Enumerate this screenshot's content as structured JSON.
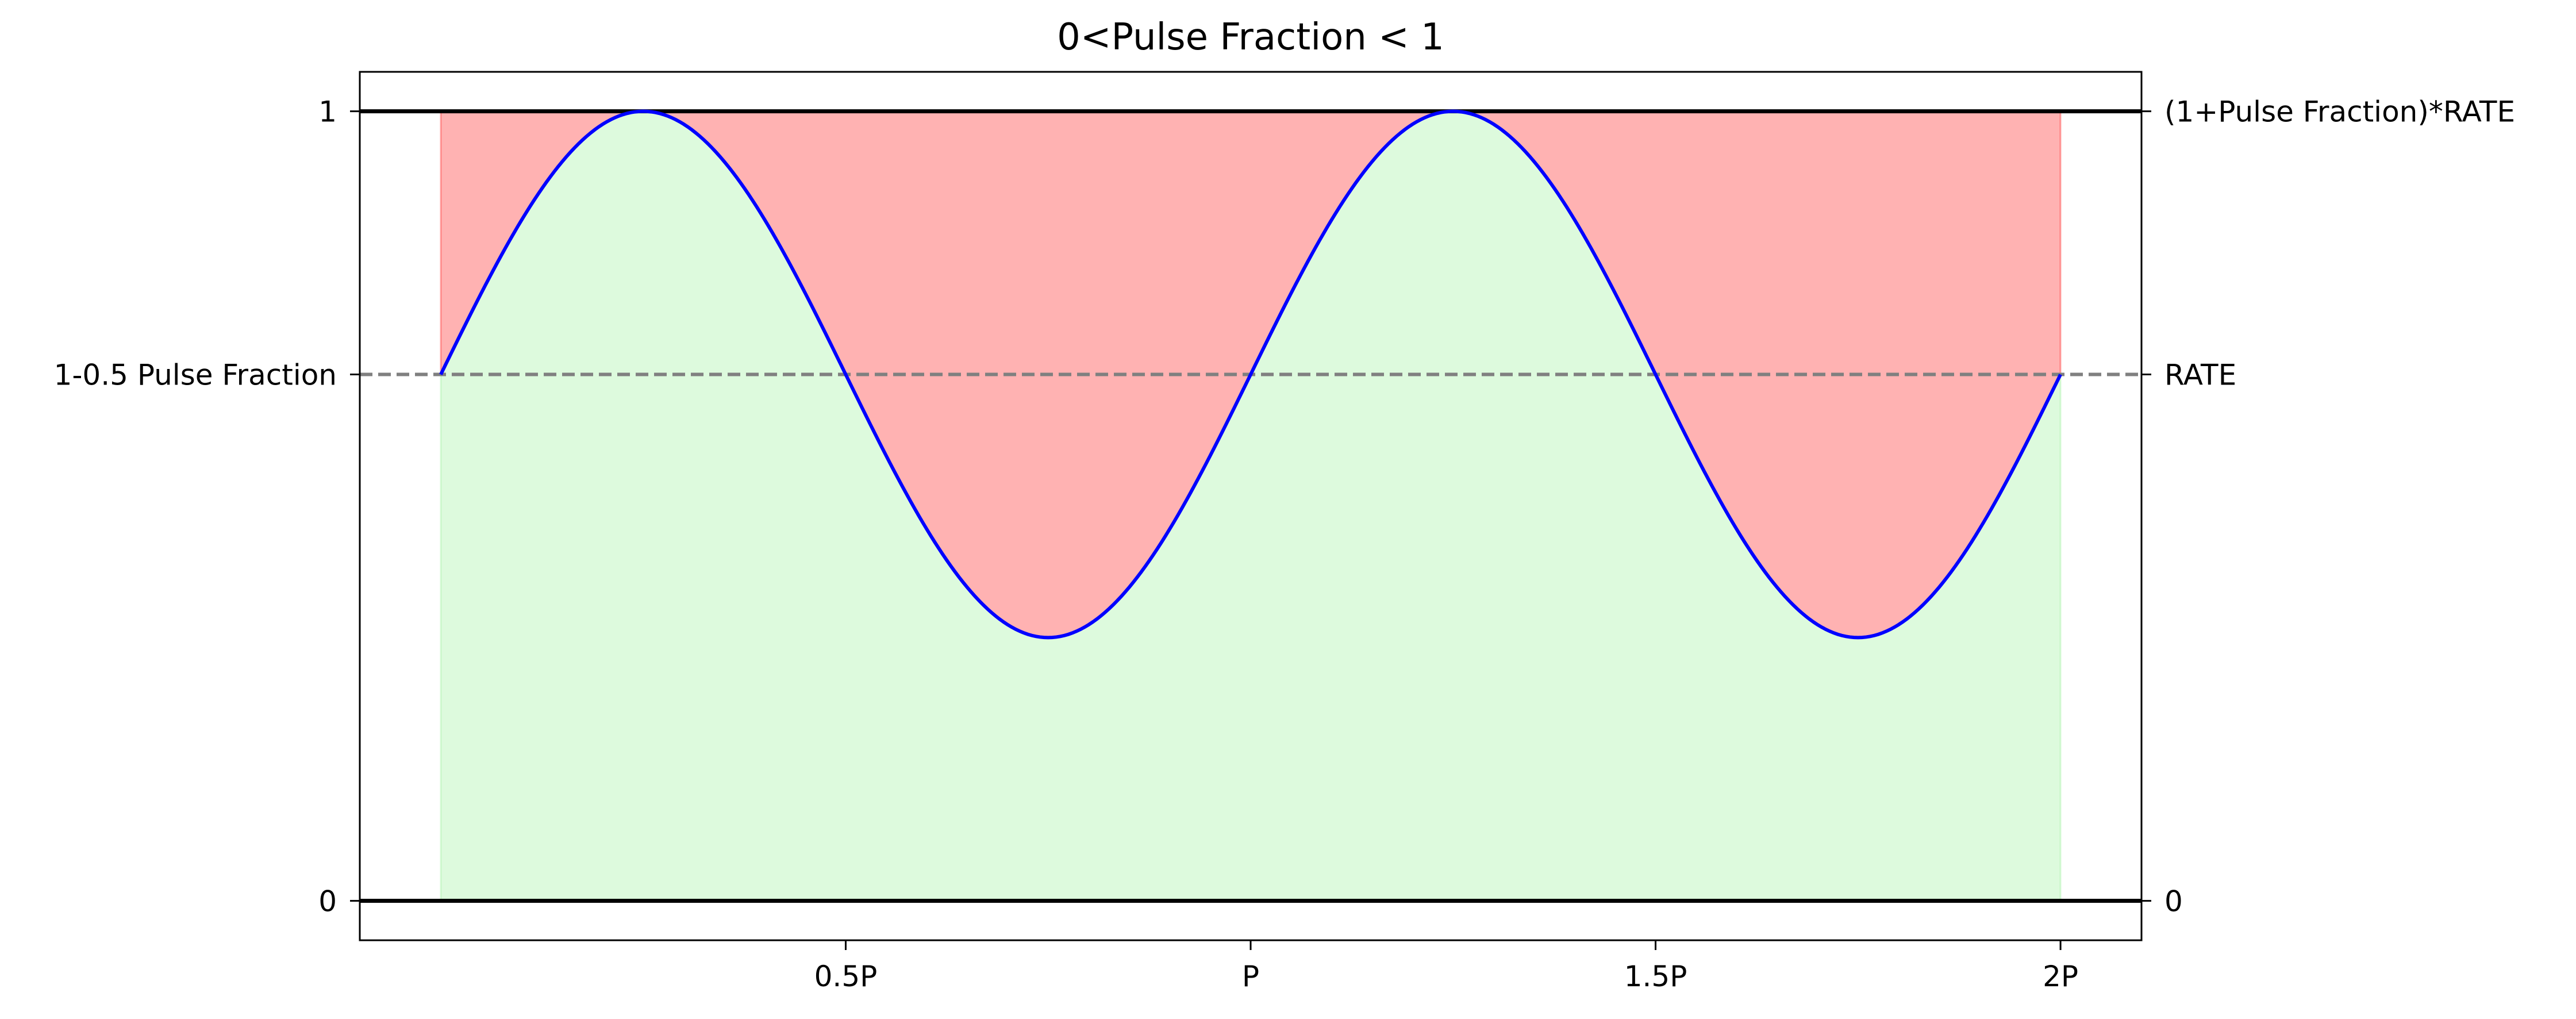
{
  "chart_data": {
    "type": "line",
    "title": "0<Pulse Fraction < 1",
    "xlabel": "",
    "ylabel": "",
    "xlim": [
      -0.1,
      2.1
    ],
    "ylim": [
      -0.05,
      1.05
    ],
    "x_ticks": [
      {
        "value": 0.5,
        "label": "0.5P"
      },
      {
        "value": 1.0,
        "label": "P"
      },
      {
        "value": 1.5,
        "label": "1.5P"
      },
      {
        "value": 2.0,
        "label": "2P"
      }
    ],
    "y_ticks_left": [
      {
        "value": 0,
        "label": "0"
      },
      {
        "value": 0.6667,
        "label": "1-0.5 Pulse Fraction"
      },
      {
        "value": 1,
        "label": "1"
      }
    ],
    "y_ticks_right": [
      {
        "value": 0,
        "label": "0"
      },
      {
        "value": 0.6667,
        "label": "RATE"
      },
      {
        "value": 1,
        "label": "(1+Pulse Fraction)*RATE"
      }
    ],
    "series": [
      {
        "kind": "sine",
        "x_range": [
          0,
          2
        ],
        "midline": 0.6667,
        "amplitude": 0.3333,
        "period": 1,
        "color": "#0000ff"
      }
    ],
    "reference_lines": [
      {
        "y": 1,
        "style": "solid",
        "color": "#000000"
      },
      {
        "y": 0,
        "style": "solid",
        "color": "#000000"
      },
      {
        "y": 0.6667,
        "style": "dashed",
        "color": "#808080"
      }
    ],
    "fill_above_curve_color": "#ff0000",
    "fill_below_curve_color": "#90ee90",
    "grid": false,
    "legend": "none"
  }
}
